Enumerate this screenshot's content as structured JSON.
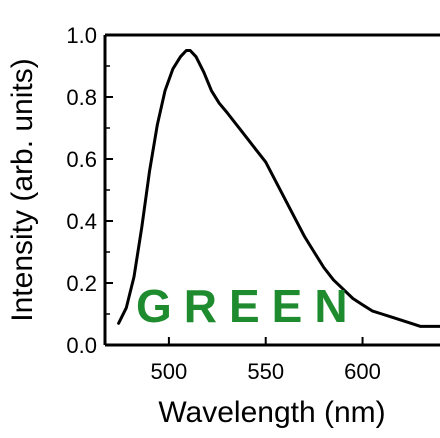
{
  "chart_data": {
    "type": "line",
    "xlabel": "Wavelength (nm)",
    "ylabel": "Intensity (arb. units)",
    "xlim": [
      467,
      640
    ],
    "ylim": [
      0.0,
      1.0
    ],
    "x_ticks": [
      500,
      550,
      600
    ],
    "y_ticks": [
      0.0,
      0.2,
      0.4,
      0.6,
      0.8,
      1.0
    ],
    "x_tick_labels": [
      "500",
      "550",
      "600"
    ],
    "y_tick_labels": [
      "0.0",
      "0.2",
      "0.4",
      "0.6",
      "0.8",
      "1.0"
    ],
    "grid": false,
    "annotation": "GREEN",
    "annotation_color": "#1e8c2e",
    "line_color": "#000000",
    "series": [
      {
        "x": [
          474,
          478,
          482,
          486,
          490,
          494,
          498,
          502,
          506,
          509,
          511,
          514,
          518,
          522,
          526,
          530,
          535,
          540,
          545,
          550,
          555,
          560,
          565,
          570,
          575,
          580,
          585,
          590,
          595,
          600,
          605,
          610,
          615,
          620,
          625,
          630,
          635,
          640
        ],
        "y": [
          0.07,
          0.12,
          0.22,
          0.38,
          0.56,
          0.71,
          0.82,
          0.89,
          0.93,
          0.95,
          0.95,
          0.93,
          0.88,
          0.82,
          0.78,
          0.75,
          0.71,
          0.67,
          0.63,
          0.59,
          0.53,
          0.47,
          0.41,
          0.35,
          0.3,
          0.25,
          0.21,
          0.18,
          0.15,
          0.13,
          0.11,
          0.1,
          0.09,
          0.08,
          0.07,
          0.06,
          0.06,
          0.06
        ]
      }
    ]
  }
}
